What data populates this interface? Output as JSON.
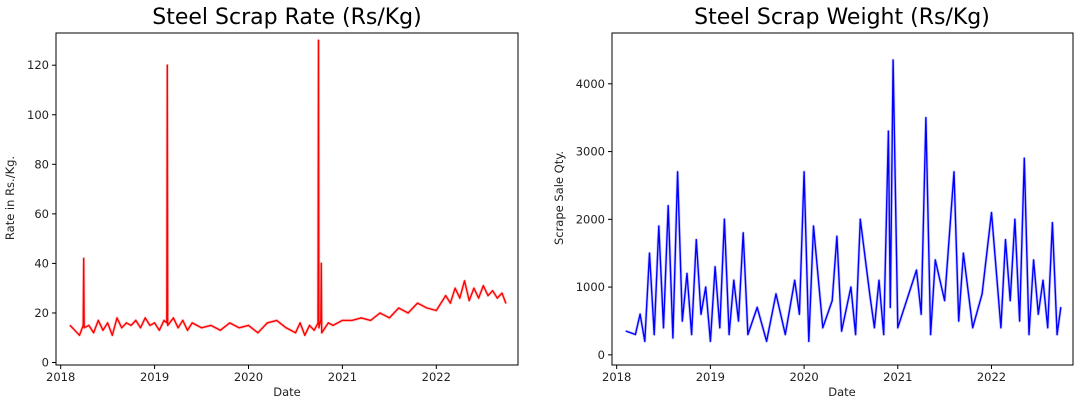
{
  "chart_data": [
    {
      "type": "line",
      "title": "Steel Scrap Rate (Rs/Kg)",
      "xlabel": "Date",
      "ylabel": "Rate in Rs./Kg.",
      "xlim": [
        2017.95,
        2022.87
      ],
      "ylim": [
        -1,
        133
      ],
      "x_ticks": [
        2018,
        2019,
        2020,
        2021,
        2022
      ],
      "x_tick_labels": [
        "2018",
        "2019",
        "2020",
        "2021",
        "2022"
      ],
      "y_ticks": [
        0,
        20,
        40,
        60,
        80,
        100,
        120
      ],
      "y_tick_labels": [
        "0",
        "20",
        "40",
        "60",
        "80",
        "100",
        "120"
      ],
      "series": [
        {
          "name": "Rate",
          "color": "#ff0000",
          "x": [
            2018.1,
            2018.2,
            2018.24,
            2018.245,
            2018.25,
            2018.3,
            2018.35,
            2018.4,
            2018.45,
            2018.5,
            2018.55,
            2018.6,
            2018.65,
            2018.7,
            2018.75,
            2018.8,
            2018.85,
            2018.9,
            2018.95,
            2019.0,
            2019.05,
            2019.1,
            2019.13,
            2019.135,
            2019.14,
            2019.2,
            2019.25,
            2019.3,
            2019.35,
            2019.4,
            2019.5,
            2019.6,
            2019.7,
            2019.8,
            2019.9,
            2020.0,
            2020.1,
            2020.2,
            2020.3,
            2020.4,
            2020.5,
            2020.55,
            2020.6,
            2020.65,
            2020.7,
            2020.74,
            2020.745,
            2020.75,
            2020.77,
            2020.775,
            2020.78,
            2020.85,
            2020.9,
            2021.0,
            2021.1,
            2021.2,
            2021.3,
            2021.4,
            2021.5,
            2021.6,
            2021.7,
            2021.8,
            2021.9,
            2022.0,
            2022.1,
            2022.15,
            2022.2,
            2022.25,
            2022.3,
            2022.35,
            2022.4,
            2022.45,
            2022.5,
            2022.55,
            2022.6,
            2022.65,
            2022.7,
            2022.74
          ],
          "values": [
            15,
            11,
            15,
            42,
            14,
            15,
            12,
            17,
            13,
            16,
            11,
            18,
            14,
            16,
            15,
            17,
            14,
            18,
            15,
            16,
            13,
            17,
            16,
            120,
            15,
            18,
            14,
            17,
            13,
            16,
            14,
            15,
            13,
            16,
            14,
            15,
            12,
            16,
            17,
            14,
            12,
            16,
            11,
            15,
            13,
            16,
            130,
            14,
            17,
            40,
            12,
            16,
            15,
            17,
            17,
            18,
            17,
            20,
            18,
            22,
            20,
            24,
            22,
            21,
            27,
            24,
            30,
            26,
            33,
            25,
            30,
            26,
            31,
            27,
            29,
            26,
            28,
            24
          ]
        }
      ]
    },
    {
      "type": "line",
      "title": "Steel Scrap Weight (Rs/Kg)",
      "xlabel": "Date",
      "ylabel": "Scrape Sale Qty.",
      "xlim": [
        2017.95,
        2022.87
      ],
      "ylim": [
        -150,
        4750
      ],
      "x_ticks": [
        2018,
        2019,
        2020,
        2021,
        2022
      ],
      "x_tick_labels": [
        "2018",
        "2019",
        "2020",
        "2021",
        "2022"
      ],
      "y_ticks": [
        0,
        1000,
        2000,
        3000,
        4000
      ],
      "y_tick_labels": [
        "0",
        "1000",
        "2000",
        "3000",
        "4000"
      ],
      "series": [
        {
          "name": "Weight",
          "color": "#0000ff",
          "x": [
            2018.1,
            2018.2,
            2018.25,
            2018.3,
            2018.35,
            2018.4,
            2018.45,
            2018.5,
            2018.55,
            2018.6,
            2018.65,
            2018.7,
            2018.75,
            2018.8,
            2018.85,
            2018.9,
            2018.95,
            2019.0,
            2019.05,
            2019.1,
            2019.15,
            2019.2,
            2019.25,
            2019.3,
            2019.35,
            2019.4,
            2019.5,
            2019.6,
            2019.7,
            2019.8,
            2019.9,
            2019.95,
            2020.0,
            2020.05,
            2020.1,
            2020.2,
            2020.3,
            2020.35,
            2020.4,
            2020.5,
            2020.55,
            2020.6,
            2020.7,
            2020.75,
            2020.8,
            2020.85,
            2020.9,
            2020.92,
            2020.95,
            2021.0,
            2021.2,
            2021.25,
            2021.3,
            2021.35,
            2021.4,
            2021.5,
            2021.6,
            2021.65,
            2021.7,
            2021.8,
            2021.9,
            2022.0,
            2022.1,
            2022.15,
            2022.2,
            2022.25,
            2022.3,
            2022.35,
            2022.4,
            2022.45,
            2022.5,
            2022.55,
            2022.6,
            2022.65,
            2022.7,
            2022.74
          ],
          "values": [
            350,
            300,
            600,
            200,
            1500,
            300,
            1900,
            400,
            2200,
            250,
            2700,
            500,
            1200,
            300,
            1700,
            600,
            1000,
            200,
            1300,
            400,
            2000,
            300,
            1100,
            500,
            1800,
            300,
            700,
            200,
            900,
            300,
            1100,
            600,
            2700,
            200,
            1900,
            400,
            800,
            1750,
            350,
            1000,
            300,
            2000,
            900,
            400,
            1100,
            300,
            3300,
            700,
            4350,
            400,
            1250,
            600,
            3500,
            300,
            1400,
            800,
            2700,
            500,
            1500,
            400,
            900,
            2100,
            400,
            1700,
            800,
            2000,
            500,
            2900,
            300,
            1400,
            600,
            1100,
            400,
            1950,
            300,
            700
          ]
        }
      ]
    }
  ]
}
